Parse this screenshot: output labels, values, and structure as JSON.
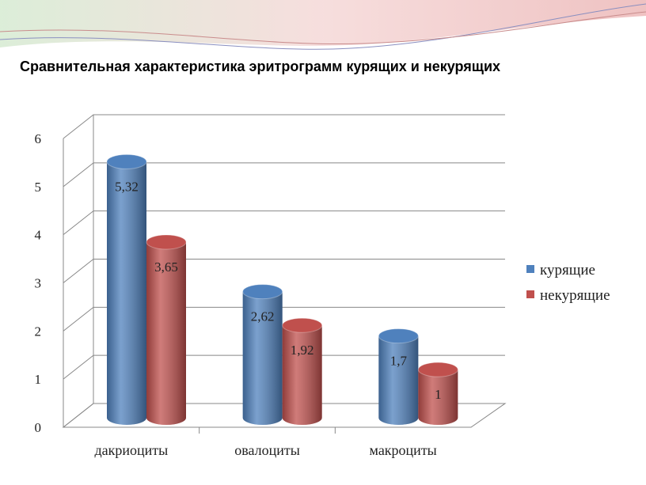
{
  "chart_data": {
    "type": "bar3d",
    "title": "Сравнительная характеристика эритрограмм курящих и некурящих",
    "categories": [
      "дакриоциты",
      "овалоциты",
      "макроциты"
    ],
    "series": [
      {
        "name": "курящие",
        "color": "#4f81bd",
        "values": [
          5.32,
          2.62,
          1.7
        ],
        "value_labels": [
          "5,32",
          "2,62",
          "1,7"
        ]
      },
      {
        "name": "некурящие",
        "color": "#c0504d",
        "values": [
          3.65,
          1.92,
          1
        ],
        "value_labels": [
          "3,65",
          "1,92",
          "1"
        ]
      }
    ],
    "ylim": [
      0,
      6
    ],
    "yticks": [
      0,
      1,
      2,
      3,
      4,
      5,
      6
    ],
    "grid": true,
    "legend": "right"
  }
}
